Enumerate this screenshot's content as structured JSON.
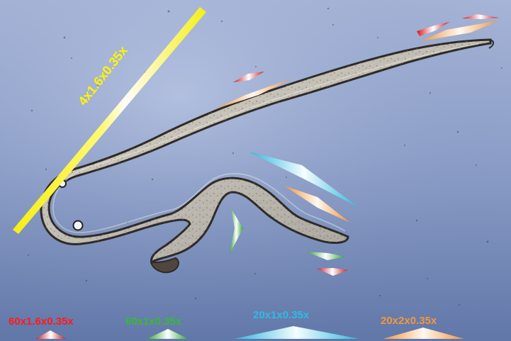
{
  "image": {
    "subject": "nematode-micrograph",
    "colors": {
      "background_top": "#9aa8cf",
      "background_bottom": "#6f83b4",
      "worm_body": "#c9c7be",
      "worm_outline": "#2d2b26",
      "yellow_marker": "#f4ee12",
      "red_marker": "#e01818",
      "green_marker": "#2fb12c",
      "cyan_marker": "#30b8e0",
      "orange_marker": "#f09a3c"
    }
  },
  "labels": {
    "yellow_scale": "4x1.6x0.35x",
    "red_scale": "60x1.6x0.35x",
    "green_scale": "60x1x0.35x",
    "cyan_scale": "20x1x0.35x",
    "orange_scale": "20x2x0.35x"
  }
}
